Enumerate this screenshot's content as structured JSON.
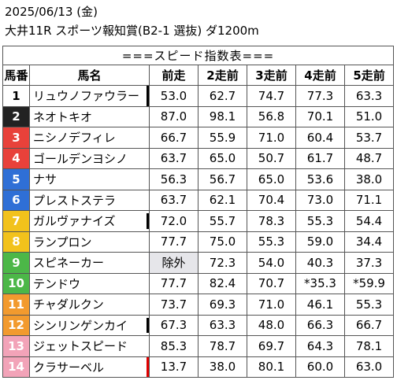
{
  "header": {
    "line1": "2025/06/13 (金)",
    "line2": "大井11R スポーツ報知賞(B2-1 選抜) ダ1200m"
  },
  "table": {
    "title": "===スピード指数表===",
    "columns": [
      "馬番",
      "馬名",
      "前走",
      "2走前",
      "3走前",
      "4走前",
      "5走前"
    ],
    "rows": [
      {
        "num": "1",
        "name": "リュウノファウラー",
        "vals": [
          "53.0",
          "62.7",
          "74.7",
          "77.3",
          "63.3"
        ],
        "bg": "#ffffff",
        "fg": "#000000",
        "mark": "black"
      },
      {
        "num": "2",
        "name": "ネオトキオ",
        "vals": [
          "87.0",
          "98.1",
          "56.8",
          "70.1",
          "51.0"
        ],
        "bg": "#222222",
        "fg": "#ffffff",
        "mark": ""
      },
      {
        "num": "3",
        "name": "ニシノデフィレ",
        "vals": [
          "66.7",
          "55.9",
          "71.0",
          "60.4",
          "53.7"
        ],
        "bg": "#e8413a",
        "fg": "#ffffff",
        "mark": ""
      },
      {
        "num": "4",
        "name": "ゴールデンヨシノ",
        "vals": [
          "63.7",
          "65.0",
          "50.7",
          "61.7",
          "48.7"
        ],
        "bg": "#e8413a",
        "fg": "#ffffff",
        "mark": ""
      },
      {
        "num": "5",
        "name": "ナサ",
        "vals": [
          "56.3",
          "56.7",
          "65.0",
          "53.6",
          "38.0"
        ],
        "bg": "#2f6fd6",
        "fg": "#ffffff",
        "mark": ""
      },
      {
        "num": "6",
        "name": "プレストステラ",
        "vals": [
          "63.7",
          "62.1",
          "70.4",
          "73.0",
          "71.1"
        ],
        "bg": "#2f6fd6",
        "fg": "#ffffff",
        "mark": ""
      },
      {
        "num": "7",
        "name": "ガルヴァナイズ",
        "vals": [
          "72.0",
          "55.7",
          "78.3",
          "55.3",
          "54.4"
        ],
        "bg": "#f2c21c",
        "fg": "#ffffff",
        "mark": "black"
      },
      {
        "num": "8",
        "name": "ランプロン",
        "vals": [
          "77.7",
          "75.0",
          "55.3",
          "59.0",
          "34.4"
        ],
        "bg": "#f2c21c",
        "fg": "#ffffff",
        "mark": ""
      },
      {
        "num": "9",
        "name": "スピネーカー",
        "vals": [
          "除外",
          "72.3",
          "54.0",
          "40.3",
          "37.3"
        ],
        "bg": "#4cb748",
        "fg": "#ffffff",
        "mark": ""
      },
      {
        "num": "10",
        "name": "テンドウ",
        "vals": [
          "77.7",
          "82.4",
          "70.7",
          "*35.3",
          "*59.9"
        ],
        "bg": "#4cb748",
        "fg": "#ffffff",
        "mark": ""
      },
      {
        "num": "11",
        "name": "チャダルクン",
        "vals": [
          "73.7",
          "69.3",
          "71.0",
          "46.1",
          "55.3"
        ],
        "bg": "#f29a2e",
        "fg": "#ffffff",
        "mark": ""
      },
      {
        "num": "12",
        "name": "シンリンゲンカイ",
        "vals": [
          "67.3",
          "63.3",
          "48.0",
          "66.3",
          "66.7"
        ],
        "bg": "#f29a2e",
        "fg": "#ffffff",
        "mark": "black"
      },
      {
        "num": "13",
        "name": "ジェットスピード",
        "vals": [
          "85.3",
          "78.7",
          "69.7",
          "64.3",
          "78.1"
        ],
        "bg": "#f2a3b8",
        "fg": "#ffffff",
        "mark": ""
      },
      {
        "num": "14",
        "name": "クラサーベル",
        "vals": [
          "13.7",
          "38.0",
          "80.1",
          "60.0",
          "63.0"
        ],
        "bg": "#f2a3b8",
        "fg": "#ffffff",
        "mark": "red"
      }
    ],
    "excluded_bg": "#e6e6ea"
  }
}
